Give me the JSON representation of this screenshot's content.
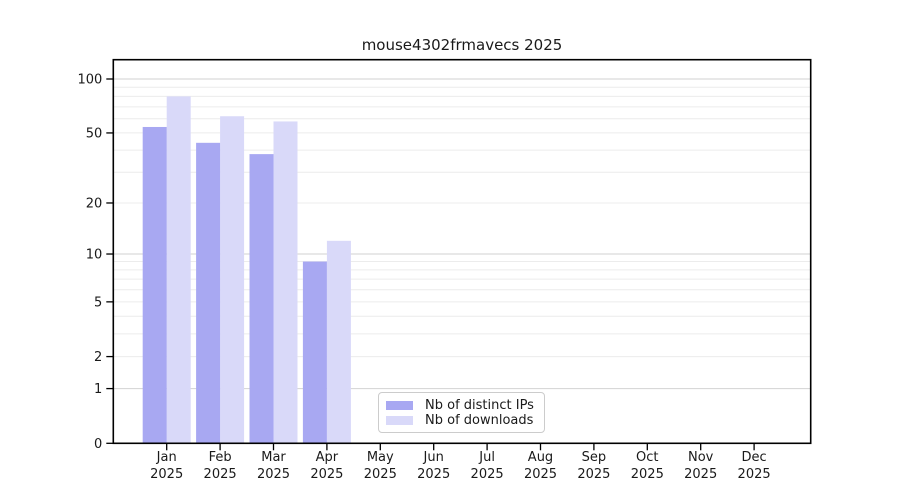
{
  "chart_data": {
    "type": "bar",
    "title": "mouse4302frmavecs 2025",
    "scale": "log10(value+1)",
    "categories": [
      "Jan",
      "Feb",
      "Mar",
      "Apr",
      "May",
      "Jun",
      "Jul",
      "Aug",
      "Sep",
      "Oct",
      "Nov",
      "Dec"
    ],
    "category_year": "2025",
    "series": [
      {
        "name": "Nb of distinct IPs",
        "color": "#a8a8f2",
        "values": [
          54,
          44,
          38,
          9,
          null,
          null,
          null,
          null,
          null,
          null,
          null,
          null
        ]
      },
      {
        "name": "Nb of downloads",
        "color": "#d9d9f9",
        "values": [
          80,
          62,
          58,
          12,
          null,
          null,
          null,
          null,
          null,
          null,
          null,
          null
        ]
      }
    ],
    "y_ticks": [
      0,
      1,
      2,
      5,
      10,
      20,
      50,
      100
    ],
    "ylim": [
      0,
      128
    ],
    "grid": {
      "major_at": [
        1,
        10,
        100
      ],
      "minor_at": [
        2,
        3,
        4,
        5,
        6,
        7,
        8,
        9,
        20,
        30,
        40,
        50,
        60,
        70,
        80,
        90
      ],
      "major_color": "#d2d2d2",
      "minor_color": "#ececec"
    },
    "legend_position": "lower-left-of-center-inside",
    "axis_color": "#000000",
    "text_color": "#1a1a1a"
  }
}
